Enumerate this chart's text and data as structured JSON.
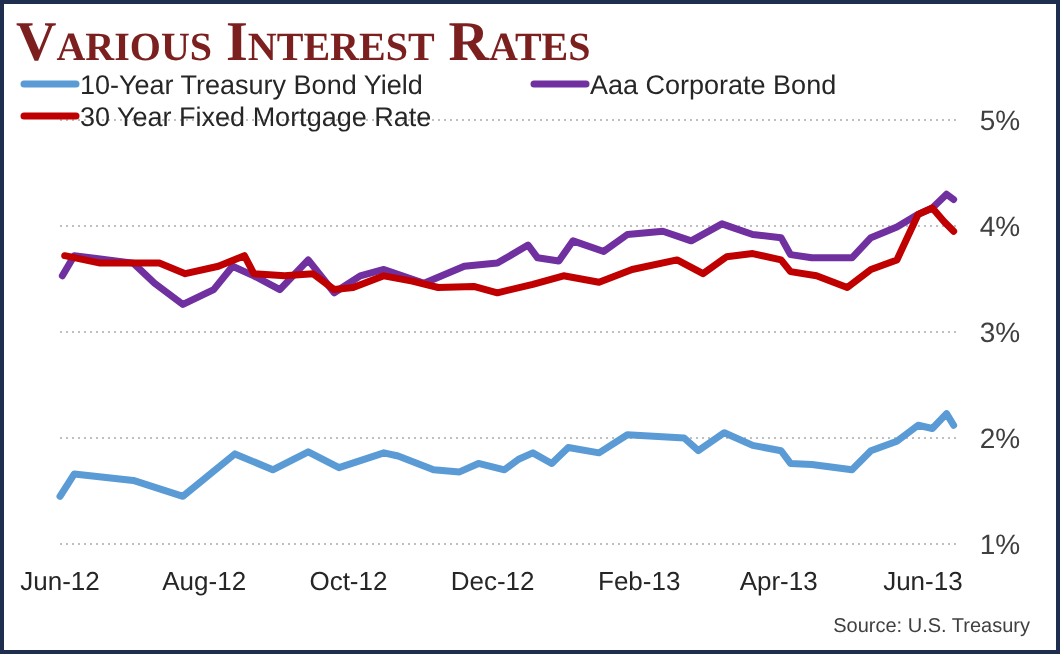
{
  "chart_data": {
    "type": "line",
    "title": "Various Interest Rates",
    "legend": "top",
    "grid": "y",
    "line_style": "solid",
    "marker": "none",
    "xlim": [
      "2012-06-01",
      "2013-06-15"
    ],
    "ylim": [
      1,
      5
    ],
    "xticks": [
      {
        "value": "2012-06-01",
        "label": "Jun-12"
      },
      {
        "value": "2012-08-01",
        "label": "Aug-12"
      },
      {
        "value": "2012-10-01",
        "label": "Oct-12"
      },
      {
        "value": "2012-12-01",
        "label": "Dec-12"
      },
      {
        "value": "2013-02-01",
        "label": "Feb-13"
      },
      {
        "value": "2013-04-01",
        "label": "Apr-13"
      },
      {
        "value": "2013-06-01",
        "label": "Jun-13"
      }
    ],
    "yticks": [
      {
        "value": 1,
        "label": "1%"
      },
      {
        "value": 2,
        "label": "2%"
      },
      {
        "value": 3,
        "label": "3%"
      },
      {
        "value": 4,
        "label": "4%"
      },
      {
        "value": 5,
        "label": "5%"
      }
    ],
    "series": [
      {
        "name": "10-Year Treasury Bond Yield",
        "color": "#5b9bd5",
        "x": [
          "2012-06-01",
          "2012-06-07",
          "2012-07-02",
          "2012-07-23",
          "2012-08-14",
          "2012-08-30",
          "2012-09-14",
          "2012-09-27",
          "2012-10-16",
          "2012-10-22",
          "2012-11-06",
          "2012-11-17",
          "2012-11-25",
          "2012-12-06",
          "2012-12-12",
          "2012-12-18",
          "2012-12-26",
          "2013-01-02",
          "2013-01-15",
          "2013-01-27",
          "2013-02-20",
          "2013-02-26",
          "2013-03-09",
          "2013-03-21",
          "2013-04-02",
          "2013-04-06",
          "2013-04-15",
          "2013-05-02",
          "2013-05-10",
          "2013-05-21",
          "2013-05-30",
          "2013-06-05",
          "2013-06-11",
          "2013-06-14"
        ],
        "values": [
          1.45,
          1.66,
          1.6,
          1.45,
          1.85,
          1.7,
          1.87,
          1.72,
          1.86,
          1.83,
          1.7,
          1.68,
          1.76,
          1.7,
          1.8,
          1.86,
          1.76,
          1.91,
          1.86,
          2.03,
          2.0,
          1.88,
          2.05,
          1.93,
          1.88,
          1.76,
          1.75,
          1.7,
          1.88,
          1.97,
          2.12,
          2.09,
          2.23,
          2.12
        ]
      },
      {
        "name": "Aaa Corporate Bond",
        "color": "#7030a0",
        "x": [
          "2012-06-02",
          "2012-06-07",
          "2012-07-02",
          "2012-07-11",
          "2012-07-23",
          "2012-08-05",
          "2012-08-13",
          "2012-08-22",
          "2012-09-02",
          "2012-09-14",
          "2012-09-25",
          "2012-10-06",
          "2012-10-16",
          "2012-11-02",
          "2012-11-19",
          "2012-12-03",
          "2012-12-16",
          "2012-12-20",
          "2012-12-29",
          "2013-01-04",
          "2013-01-17",
          "2013-01-27",
          "2013-02-11",
          "2013-02-23",
          "2013-03-08",
          "2013-03-21",
          "2013-04-02",
          "2013-04-06",
          "2013-04-15",
          "2013-05-02",
          "2013-05-10",
          "2013-05-21",
          "2013-05-30",
          "2013-06-05",
          "2013-06-11",
          "2013-06-14"
        ],
        "values": [
          3.53,
          3.72,
          3.65,
          3.46,
          3.26,
          3.4,
          3.62,
          3.53,
          3.4,
          3.68,
          3.37,
          3.53,
          3.59,
          3.46,
          3.62,
          3.65,
          3.82,
          3.7,
          3.67,
          3.86,
          3.76,
          3.92,
          3.95,
          3.86,
          4.02,
          3.92,
          3.89,
          3.73,
          3.7,
          3.7,
          3.89,
          3.99,
          4.11,
          4.17,
          4.3,
          4.25
        ]
      },
      {
        "name": "30 Year Fixed Mortgage Rate",
        "color": "#c00000",
        "x": [
          "2012-06-03",
          "2012-06-18",
          "2012-07-13",
          "2012-07-24",
          "2012-08-07",
          "2012-08-18",
          "2012-08-22",
          "2012-09-04",
          "2012-09-16",
          "2012-09-25",
          "2012-10-03",
          "2012-10-16",
          "2012-10-28",
          "2012-11-08",
          "2012-11-23",
          "2012-12-03",
          "2012-12-18",
          "2012-12-31",
          "2013-01-15",
          "2013-01-29",
          "2013-02-17",
          "2013-02-28",
          "2013-03-10",
          "2013-03-21",
          "2013-04-02",
          "2013-04-06",
          "2013-04-17",
          "2013-04-30",
          "2013-05-10",
          "2013-05-21",
          "2013-05-30",
          "2013-06-05",
          "2013-06-10",
          "2013-06-14"
        ],
        "values": [
          3.72,
          3.65,
          3.65,
          3.55,
          3.62,
          3.72,
          3.55,
          3.53,
          3.55,
          3.4,
          3.42,
          3.53,
          3.48,
          3.42,
          3.43,
          3.37,
          3.45,
          3.53,
          3.47,
          3.59,
          3.68,
          3.55,
          3.71,
          3.74,
          3.68,
          3.57,
          3.53,
          3.42,
          3.59,
          3.68,
          4.11,
          4.17,
          4.04,
          3.95
        ]
      }
    ],
    "annotations": [
      "Source:  U.S. Treasury"
    ]
  }
}
